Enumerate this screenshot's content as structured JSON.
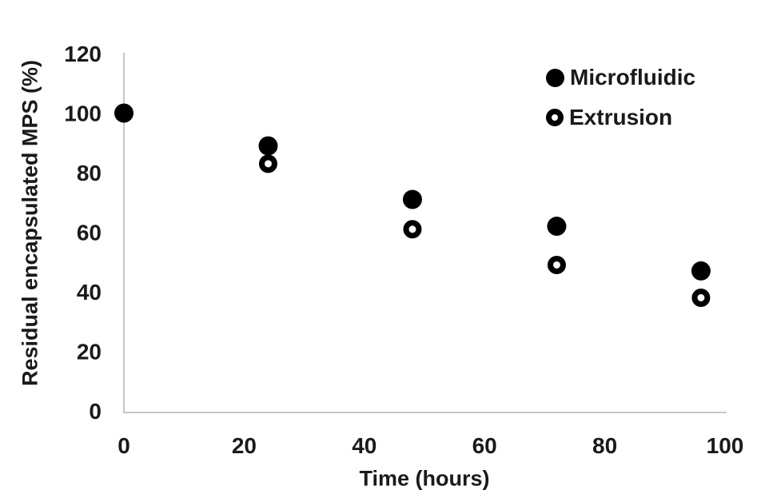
{
  "chart_data": {
    "type": "scatter",
    "title": "",
    "xlabel": "Time (hours)",
    "ylabel": "Residual encapsulated MPS (%)",
    "xlim": [
      0,
      100
    ],
    "ylim": [
      0,
      120
    ],
    "x_ticks": [
      0,
      20,
      40,
      60,
      80,
      100
    ],
    "y_ticks": [
      0,
      20,
      40,
      60,
      80,
      100,
      120
    ],
    "grid": false,
    "legend_position": "top-right-inside",
    "series": [
      {
        "name": "Extrusion",
        "marker": "open-circle",
        "color": "#000000",
        "points": [
          [
            0,
            100
          ],
          [
            24,
            83
          ],
          [
            48,
            61
          ],
          [
            72,
            49
          ],
          [
            96,
            38
          ]
        ]
      },
      {
        "name": "Microfluidic",
        "marker": "filled-circle",
        "color": "#000000",
        "points": [
          [
            0,
            100
          ],
          [
            24,
            89
          ],
          [
            48,
            71
          ],
          [
            72,
            62
          ],
          [
            96,
            47
          ]
        ]
      }
    ]
  },
  "legend": {
    "items": [
      {
        "label": "Microfluidic",
        "marker": "filled-circle"
      },
      {
        "label": "Extrusion",
        "marker": "open-circle"
      }
    ]
  },
  "colors": {
    "axis_line": "#c6c6c6",
    "text": "#1a1a1a",
    "marker": "#000000",
    "background": "#ffffff"
  }
}
